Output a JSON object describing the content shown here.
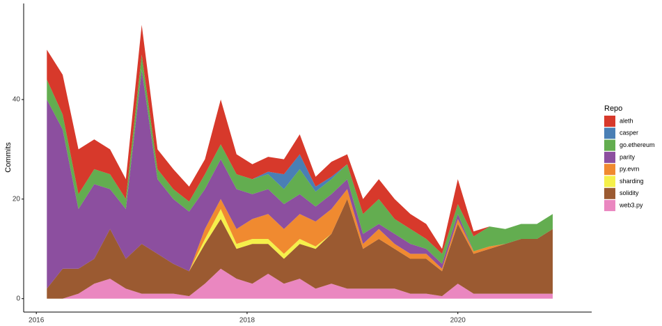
{
  "chart_data": {
    "type": "stacked_area",
    "y_label": "Commits",
    "legend_title": "Repo",
    "legend": "right",
    "x": [
      2016.1,
      2016.25,
      2016.4,
      2016.55,
      2016.7,
      2016.85,
      2017.0,
      2017.15,
      2017.3,
      2017.45,
      2017.6,
      2017.75,
      2017.9,
      2018.05,
      2018.2,
      2018.35,
      2018.5,
      2018.65,
      2018.8,
      2018.95,
      2019.1,
      2019.25,
      2019.4,
      2019.55,
      2019.7,
      2019.85,
      2020.0,
      2020.15,
      2020.3,
      2020.45,
      2020.6,
      2020.75,
      2020.9
    ],
    "xlim": [
      2015.88,
      2021.27
    ],
    "xticks": [
      2016,
      2018,
      2020
    ],
    "ylim": [
      -2.7,
      59.3
    ],
    "yticks": [
      0,
      20,
      40
    ],
    "series": [
      {
        "name": "aleth",
        "color": "#d7392b",
        "values": [
          6,
          8,
          9,
          6,
          5,
          4,
          6,
          4,
          4,
          3,
          3,
          9,
          4,
          3,
          3,
          3,
          4,
          2,
          3,
          2,
          3,
          4,
          4,
          3,
          3,
          1,
          5,
          1,
          0,
          0,
          0,
          0,
          0
        ]
      },
      {
        "name": "casper",
        "color": "#4a7fb5",
        "values": [
          0,
          0,
          0,
          0,
          0,
          0,
          0,
          0,
          0,
          0,
          0,
          0,
          0,
          0,
          0.5,
          3,
          3,
          1,
          0.5,
          0,
          0,
          0,
          0,
          0,
          0,
          0,
          0,
          0,
          0,
          0,
          0,
          0,
          0
        ]
      },
      {
        "name": "go.ethereum",
        "color": "#63ad50",
        "values": [
          4,
          3,
          3,
          3,
          3,
          2,
          3,
          2,
          2,
          2,
          3,
          3,
          3,
          3,
          3,
          3,
          5,
          3,
          3,
          3,
          4,
          5,
          3,
          3,
          2,
          2,
          2,
          3,
          4,
          3,
          3,
          3,
          3
        ]
      },
      {
        "name": "parity",
        "color": "#8c4f9f",
        "values": [
          38,
          28,
          12,
          15,
          8,
          10,
          35,
          15,
          13,
          12,
          8,
          8,
          8,
          5,
          5,
          5,
          4,
          3,
          3,
          2,
          2,
          1,
          2,
          2,
          1,
          1,
          1,
          0,
          0,
          0,
          0,
          0,
          0
        ]
      },
      {
        "name": "py.evm",
        "color": "#f08a30",
        "values": [
          0,
          0,
          0,
          0,
          0,
          0,
          0,
          0,
          0,
          0,
          2,
          2,
          3,
          4,
          5,
          5,
          5,
          5,
          5,
          2,
          1,
          2,
          1,
          1,
          1,
          0.5,
          1,
          0.5,
          0.5,
          0,
          0,
          0,
          0
        ]
      },
      {
        "name": "sharding",
        "color": "#f5f04a",
        "values": [
          0,
          0,
          0,
          0,
          0,
          0,
          0,
          0,
          0,
          0,
          1,
          2,
          1,
          1,
          1,
          1,
          1,
          0.5,
          0,
          0,
          0,
          0,
          0,
          0,
          0,
          0,
          0,
          0,
          0,
          0,
          0,
          0,
          0
        ]
      },
      {
        "name": "solidity",
        "color": "#9b5a31",
        "values": [
          2,
          6,
          5,
          5,
          10,
          6,
          10,
          8,
          6,
          5,
          8,
          10,
          6,
          8,
          6,
          5,
          7,
          8,
          10,
          18,
          8,
          10,
          8,
          7,
          7,
          5,
          12,
          8,
          9,
          10,
          11,
          11,
          13
        ]
      },
      {
        "name": "web3.py",
        "color": "#ea87c0",
        "values": [
          0,
          0,
          1,
          3,
          4,
          2,
          1,
          1,
          1,
          0.5,
          3,
          6,
          4,
          3,
          5,
          3,
          4,
          2,
          3,
          2,
          2,
          2,
          2,
          1,
          1,
          0.5,
          3,
          1,
          1,
          1,
          1,
          1,
          1
        ]
      }
    ]
  }
}
